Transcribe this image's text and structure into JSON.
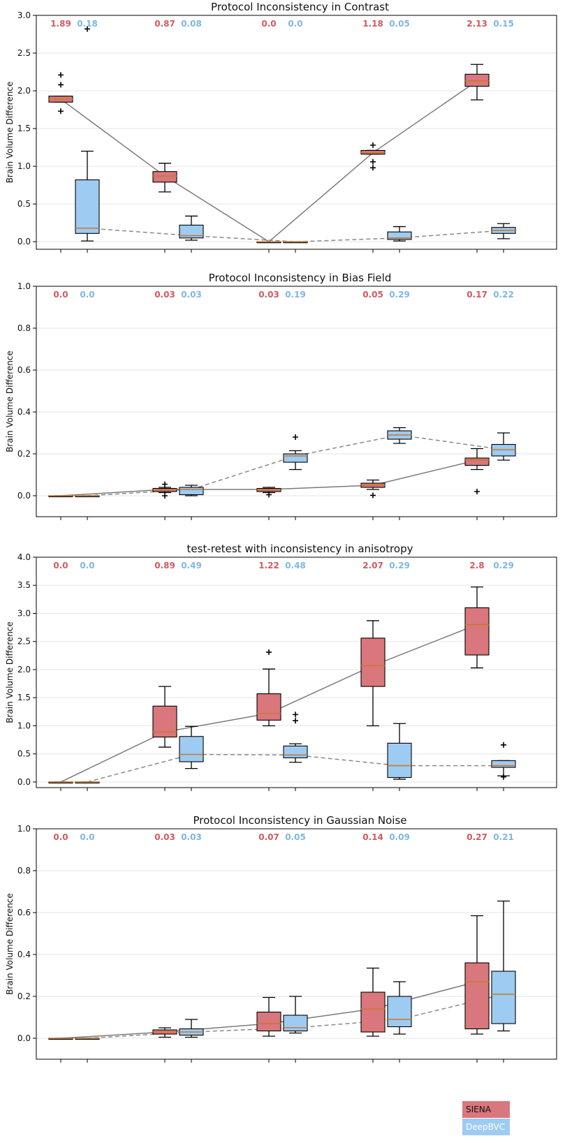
{
  "colors": {
    "siena_fill": "#d9777c",
    "deepbvc_fill": "#9ecbf2",
    "siena_text": "#d05a60",
    "deepbvc_text": "#7fb6e4",
    "median_line": "#c8782f",
    "siena_trend": "#7a7a7a",
    "deepbvc_trend": "#8a8a8a",
    "grid": "#e6e6e6"
  },
  "legend": [
    {
      "key": "siena",
      "label": "SIENA"
    },
    {
      "key": "deepbvc",
      "label": "DeepBVC"
    }
  ],
  "chart_data": [
    {
      "type": "box",
      "title": "Protocol Inconsistency in Contrast",
      "ylabel": "Brain Volume Difference",
      "ylim": [
        -0.1,
        3.0
      ],
      "yticks": [
        "0.0",
        "0.5",
        "1.0",
        "1.5",
        "2.0",
        "2.5",
        "3.0"
      ],
      "groups": 5,
      "series": [
        {
          "name": "SIENA",
          "key": "siena",
          "medians": [
            "1.89",
            "0.87",
            "0.0",
            "1.18",
            "2.13"
          ],
          "boxes": [
            {
              "median": 1.89,
              "q1": 1.85,
              "q3": 1.93,
              "wlo": 1.85,
              "whi": 1.93,
              "outliers": [
                2.21,
                2.08,
                1.73
              ]
            },
            {
              "median": 0.87,
              "q1": 0.79,
              "q3": 0.93,
              "wlo": 0.66,
              "whi": 1.04,
              "outliers": []
            },
            {
              "median": 0.0,
              "q1": 0.0,
              "q3": 0.0,
              "wlo": 0.0,
              "whi": 0.0,
              "outliers": []
            },
            {
              "median": 1.18,
              "q1": 1.16,
              "q3": 1.21,
              "wlo": 1.16,
              "whi": 1.21,
              "outliers": [
                1.28,
                1.06,
                0.98
              ]
            },
            {
              "median": 2.13,
              "q1": 2.06,
              "q3": 2.22,
              "wlo": 1.88,
              "whi": 2.35,
              "outliers": []
            }
          ]
        },
        {
          "name": "DeepBVC",
          "key": "deepbvc",
          "medians": [
            "0.18",
            "0.08",
            "0.0",
            "0.05",
            "0.15"
          ],
          "boxes": [
            {
              "median": 0.18,
              "q1": 0.11,
              "q3": 0.82,
              "wlo": 0.01,
              "whi": 1.2,
              "outliers": [
                2.82
              ]
            },
            {
              "median": 0.08,
              "q1": 0.05,
              "q3": 0.22,
              "wlo": 0.02,
              "whi": 0.34,
              "outliers": []
            },
            {
              "median": 0.0,
              "q1": 0.0,
              "q3": 0.0,
              "wlo": 0.0,
              "whi": 0.0,
              "outliers": []
            },
            {
              "median": 0.05,
              "q1": 0.03,
              "q3": 0.13,
              "wlo": 0.01,
              "whi": 0.2,
              "outliers": []
            },
            {
              "median": 0.15,
              "q1": 0.11,
              "q3": 0.19,
              "wlo": 0.04,
              "whi": 0.24,
              "outliers": []
            }
          ]
        }
      ]
    },
    {
      "type": "box",
      "title": "Protocol Inconsistency in Bias Field",
      "ylabel": "Brain Volume Difference",
      "ylim": [
        -0.1,
        1.0
      ],
      "yticks": [
        "0.0",
        "0.2",
        "0.4",
        "0.6",
        "0.8",
        "1.0"
      ],
      "groups": 5,
      "series": [
        {
          "name": "SIENA",
          "key": "siena",
          "medians": [
            "0.0",
            "0.03",
            "0.03",
            "0.05",
            "0.17"
          ],
          "boxes": [
            {
              "median": 0.0,
              "q1": 0.0,
              "q3": 0.0,
              "wlo": 0.0,
              "whi": 0.0,
              "outliers": []
            },
            {
              "median": 0.03,
              "q1": 0.02,
              "q3": 0.035,
              "wlo": 0.015,
              "whi": 0.04,
              "outliers": [
                0.055,
                0.0
              ]
            },
            {
              "median": 0.03,
              "q1": 0.02,
              "q3": 0.035,
              "wlo": 0.015,
              "whi": 0.04,
              "outliers": [
                0.005
              ]
            },
            {
              "median": 0.05,
              "q1": 0.04,
              "q3": 0.06,
              "wlo": 0.03,
              "whi": 0.075,
              "outliers": [
                0.002
              ]
            },
            {
              "median": 0.17,
              "q1": 0.145,
              "q3": 0.18,
              "wlo": 0.125,
              "whi": 0.225,
              "outliers": [
                0.02
              ]
            }
          ]
        },
        {
          "name": "DeepBVC",
          "key": "deepbvc",
          "medians": [
            "0.0",
            "0.03",
            "0.19",
            "0.29",
            "0.22"
          ],
          "boxes": [
            {
              "median": 0.0,
              "q1": 0.0,
              "q3": 0.0,
              "wlo": 0.0,
              "whi": 0.0,
              "outliers": []
            },
            {
              "median": 0.03,
              "q1": 0.005,
              "q3": 0.04,
              "wlo": 0.0,
              "whi": 0.05,
              "outliers": []
            },
            {
              "median": 0.19,
              "q1": 0.16,
              "q3": 0.2,
              "wlo": 0.125,
              "whi": 0.215,
              "outliers": [
                0.28
              ]
            },
            {
              "median": 0.29,
              "q1": 0.27,
              "q3": 0.31,
              "wlo": 0.25,
              "whi": 0.325,
              "outliers": []
            },
            {
              "median": 0.22,
              "q1": 0.19,
              "q3": 0.245,
              "wlo": 0.17,
              "whi": 0.3,
              "outliers": []
            }
          ]
        }
      ]
    },
    {
      "type": "box",
      "title": "test-retest with inconsistency in anisotropy",
      "ylabel": "Brain Volume Difference",
      "ylim": [
        -0.1,
        4.0
      ],
      "yticks": [
        "0.0",
        "0.5",
        "1.0",
        "1.5",
        "2.0",
        "2.5",
        "3.0",
        "3.5",
        "4.0"
      ],
      "groups": 5,
      "series": [
        {
          "name": "SIENA",
          "key": "siena",
          "medians": [
            "0.0",
            "0.89",
            "1.22",
            "2.07",
            "2.8"
          ],
          "boxes": [
            {
              "median": 0.0,
              "q1": 0.0,
              "q3": 0.0,
              "wlo": 0.0,
              "whi": 0.0,
              "outliers": []
            },
            {
              "median": 0.89,
              "q1": 0.8,
              "q3": 1.35,
              "wlo": 0.62,
              "whi": 1.7,
              "outliers": []
            },
            {
              "median": 1.22,
              "q1": 1.1,
              "q3": 1.57,
              "wlo": 1.0,
              "whi": 2.01,
              "outliers": [
                2.31
              ]
            },
            {
              "median": 2.07,
              "q1": 1.7,
              "q3": 2.56,
              "wlo": 1.0,
              "whi": 2.87,
              "outliers": []
            },
            {
              "median": 2.8,
              "q1": 2.26,
              "q3": 3.1,
              "wlo": 2.03,
              "whi": 3.47,
              "outliers": []
            }
          ]
        },
        {
          "name": "DeepBVC",
          "key": "deepbvc",
          "medians": [
            "0.0",
            "0.49",
            "0.48",
            "0.29",
            "0.29"
          ],
          "boxes": [
            {
              "median": 0.0,
              "q1": 0.0,
              "q3": 0.0,
              "wlo": 0.0,
              "whi": 0.0,
              "outliers": []
            },
            {
              "median": 0.49,
              "q1": 0.36,
              "q3": 0.81,
              "wlo": 0.24,
              "whi": 0.99,
              "outliers": []
            },
            {
              "median": 0.48,
              "q1": 0.43,
              "q3": 0.64,
              "wlo": 0.35,
              "whi": 0.68,
              "outliers": [
                1.2,
                1.09
              ]
            },
            {
              "median": 0.29,
              "q1": 0.08,
              "q3": 0.69,
              "wlo": 0.05,
              "whi": 1.04,
              "outliers": []
            },
            {
              "median": 0.29,
              "q1": 0.26,
              "q3": 0.38,
              "wlo": 0.11,
              "whi": 0.38,
              "outliers": [
                0.66,
                0.09
              ]
            }
          ]
        }
      ]
    },
    {
      "type": "box",
      "title": "Protocol Inconsistency in Gaussian Noise",
      "ylabel": "Brain Volume Difference",
      "ylim": [
        -0.1,
        1.0
      ],
      "yticks": [
        "0.0",
        "0.2",
        "0.4",
        "0.6",
        "0.8",
        "1.0"
      ],
      "groups": 5,
      "series": [
        {
          "name": "SIENA",
          "key": "siena",
          "medians": [
            "0.0",
            "0.03",
            "0.07",
            "0.14",
            "0.27"
          ],
          "boxes": [
            {
              "median": 0.0,
              "q1": 0.0,
              "q3": 0.0,
              "wlo": 0.0,
              "whi": 0.0,
              "outliers": []
            },
            {
              "median": 0.03,
              "q1": 0.02,
              "q3": 0.04,
              "wlo": 0.005,
              "whi": 0.05,
              "outliers": []
            },
            {
              "median": 0.07,
              "q1": 0.035,
              "q3": 0.125,
              "wlo": 0.01,
              "whi": 0.195,
              "outliers": []
            },
            {
              "median": 0.14,
              "q1": 0.03,
              "q3": 0.22,
              "wlo": 0.01,
              "whi": 0.335,
              "outliers": []
            },
            {
              "median": 0.27,
              "q1": 0.045,
              "q3": 0.36,
              "wlo": 0.02,
              "whi": 0.585,
              "outliers": []
            }
          ]
        },
        {
          "name": "DeepBVC",
          "key": "deepbvc",
          "medians": [
            "0.0",
            "0.03",
            "0.05",
            "0.09",
            "0.21"
          ],
          "boxes": [
            {
              "median": 0.0,
              "q1": 0.0,
              "q3": 0.0,
              "wlo": 0.0,
              "whi": 0.0,
              "outliers": []
            },
            {
              "median": 0.03,
              "q1": 0.015,
              "q3": 0.045,
              "wlo": 0.005,
              "whi": 0.09,
              "outliers": []
            },
            {
              "median": 0.05,
              "q1": 0.035,
              "q3": 0.11,
              "wlo": 0.025,
              "whi": 0.2,
              "outliers": []
            },
            {
              "median": 0.09,
              "q1": 0.055,
              "q3": 0.2,
              "wlo": 0.02,
              "whi": 0.27,
              "outliers": []
            },
            {
              "median": 0.21,
              "q1": 0.07,
              "q3": 0.32,
              "wlo": 0.035,
              "whi": 0.655,
              "outliers": []
            }
          ]
        }
      ]
    }
  ]
}
